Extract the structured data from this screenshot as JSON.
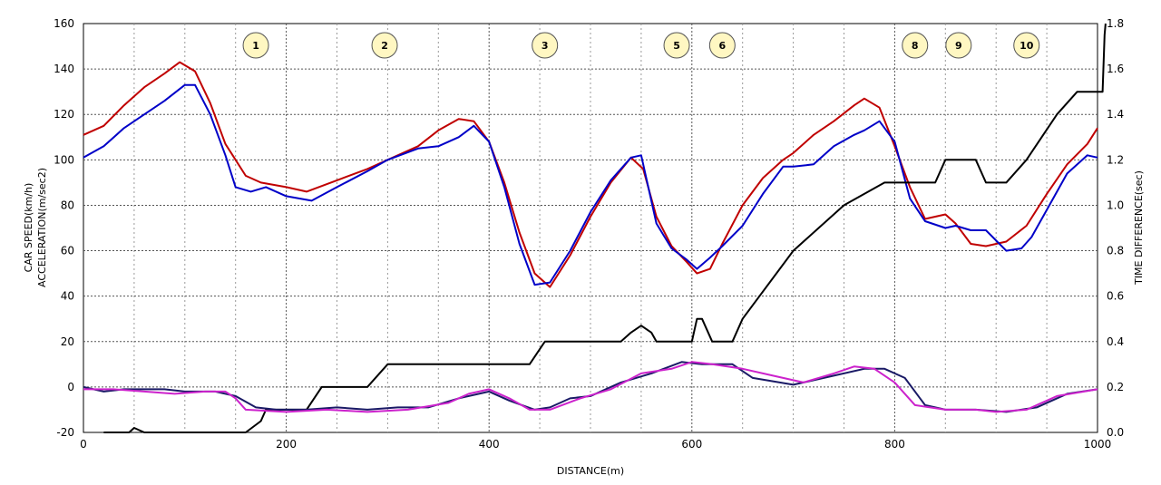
{
  "chart_data": {
    "type": "line",
    "x_range": [
      0,
      1000
    ],
    "x_ticks": [
      0,
      200,
      400,
      600,
      800,
      1000
    ],
    "x_minor_step": 50,
    "xlabel": "DISTANCE(m)",
    "y_left": {
      "labels": [
        "CAR SPEED(km/h)",
        "ACCELERATION(m/sec2)"
      ],
      "range": [
        -20,
        160
      ],
      "ticks": [
        -20,
        0,
        20,
        40,
        60,
        80,
        100,
        120,
        140,
        160
      ]
    },
    "y_right": {
      "label": "TIME DIFFERENCE(sec)",
      "range": [
        0.0,
        1.8
      ],
      "ticks": [
        "0.0",
        "0.2",
        "0.4",
        "0.6",
        "0.8",
        "1.0",
        "1.2",
        "1.4",
        "1.6",
        "1.8"
      ]
    },
    "grid": true,
    "corner_markers": [
      {
        "label": "1",
        "x": 170
      },
      {
        "label": "2",
        "x": 297
      },
      {
        "label": "3",
        "x": 455
      },
      {
        "label": "5",
        "x": 585
      },
      {
        "label": "6",
        "x": 630
      },
      {
        "label": "8",
        "x": 820
      },
      {
        "label": "9",
        "x": 863
      },
      {
        "label": "10",
        "x": 930
      }
    ],
    "series": [
      {
        "color": "#c00000",
        "axis": "left",
        "x": [
          0,
          20,
          40,
          60,
          80,
          95,
          110,
          125,
          140,
          150,
          160,
          175,
          200,
          220,
          250,
          280,
          300,
          330,
          350,
          370,
          385,
          400,
          415,
          430,
          445,
          460,
          480,
          500,
          520,
          540,
          552,
          565,
          580,
          595,
          605,
          618,
          630,
          650,
          670,
          690,
          700,
          720,
          740,
          760,
          770,
          785,
          800,
          815,
          830,
          850,
          860,
          875,
          890,
          910,
          930,
          950,
          970,
          990,
          1000
        ],
        "y": [
          111,
          115,
          124,
          132,
          138,
          143,
          139,
          125,
          107,
          100,
          93,
          90,
          88,
          86,
          91,
          96,
          100,
          106,
          113,
          118,
          117,
          108,
          90,
          68,
          50,
          44,
          58,
          75,
          90,
          101,
          96,
          75,
          62,
          55,
          50,
          52,
          63,
          80,
          92,
          100,
          103,
          111,
          117,
          124,
          127,
          123,
          106,
          88,
          74,
          76,
          72,
          63,
          62,
          64,
          71,
          85,
          98,
          107,
          114
        ]
      },
      {
        "color": "#0000c8",
        "axis": "left",
        "x": [
          0,
          20,
          40,
          60,
          80,
          100,
          110,
          125,
          140,
          150,
          165,
          180,
          200,
          225,
          250,
          280,
          300,
          330,
          350,
          370,
          385,
          400,
          415,
          430,
          445,
          460,
          480,
          500,
          520,
          540,
          550,
          565,
          580,
          595,
          605,
          618,
          630,
          650,
          670,
          690,
          700,
          720,
          740,
          760,
          770,
          785,
          800,
          815,
          830,
          850,
          860,
          875,
          890,
          910,
          925,
          935,
          950,
          970,
          990,
          1000
        ],
        "y": [
          101,
          106,
          114,
          120,
          126,
          133,
          133,
          120,
          102,
          88,
          86,
          88,
          84,
          82,
          88,
          95,
          100,
          105,
          106,
          110,
          115,
          108,
          88,
          63,
          45,
          46,
          60,
          77,
          91,
          101,
          102,
          72,
          61,
          56,
          52,
          57,
          62,
          71,
          85,
          97,
          97,
          98,
          106,
          111,
          113,
          117,
          108,
          83,
          73,
          70,
          71,
          69,
          69,
          60,
          61,
          66,
          78,
          94,
          102,
          101
        ]
      },
      {
        "color": "#000000",
        "axis": "right",
        "x": [
          20,
          45,
          50,
          60,
          110,
          160,
          175,
          180,
          210,
          220,
          235,
          240,
          280,
          300,
          440,
          455,
          530,
          540,
          550,
          560,
          565,
          590,
          600,
          605,
          610,
          620,
          640,
          650,
          700,
          750,
          790,
          800,
          840,
          850,
          870,
          880,
          890,
          900,
          910,
          930,
          960,
          980,
          1000,
          1005,
          1007,
          1008
        ],
        "y": [
          0,
          0,
          0.02,
          0,
          0,
          0,
          0.05,
          0.1,
          0.1,
          0.1,
          0.2,
          0.2,
          0.2,
          0.3,
          0.3,
          0.4,
          0.4,
          0.44,
          0.47,
          0.44,
          0.4,
          0.4,
          0.4,
          0.5,
          0.5,
          0.4,
          0.4,
          0.5,
          0.8,
          1.0,
          1.1,
          1.1,
          1.1,
          1.2,
          1.2,
          1.2,
          1.1,
          1.1,
          1.1,
          1.2,
          1.4,
          1.5,
          1.5,
          1.5,
          1.75,
          1.8
        ]
      },
      {
        "color": "#1a1a66",
        "axis": "left",
        "x": [
          0,
          20,
          40,
          60,
          80,
          100,
          130,
          150,
          170,
          190,
          220,
          250,
          280,
          310,
          340,
          370,
          400,
          420,
          445,
          460,
          480,
          500,
          530,
          560,
          590,
          610,
          640,
          660,
          700,
          740,
          770,
          790,
          810,
          830,
          850,
          880,
          910,
          940,
          970,
          1000
        ],
        "y": [
          0,
          -2,
          -1,
          -1,
          -1,
          -2,
          -2,
          -4,
          -9,
          -10,
          -10,
          -9,
          -10,
          -9,
          -9,
          -5,
          -2,
          -6,
          -10,
          -9,
          -5,
          -4,
          2,
          6,
          11,
          10,
          10,
          4,
          1,
          5,
          8,
          8,
          4,
          -8,
          -10,
          -10,
          -11,
          -9,
          -3,
          -1
        ]
      },
      {
        "color": "#cc22cc",
        "axis": "left",
        "x": [
          0,
          30,
          60,
          90,
          120,
          140,
          150,
          160,
          200,
          240,
          280,
          320,
          360,
          380,
          400,
          420,
          440,
          460,
          490,
          520,
          550,
          580,
          600,
          620,
          650,
          680,
          710,
          740,
          760,
          780,
          800,
          820,
          850,
          880,
          900,
          930,
          960,
          1000
        ],
        "y": [
          -1,
          -1,
          -2,
          -3,
          -2,
          -2,
          -5,
          -10,
          -11,
          -10,
          -11,
          -10,
          -7,
          -3,
          -1,
          -5,
          -10,
          -10,
          -5,
          -1,
          6,
          8,
          11,
          10,
          8,
          5,
          2,
          6,
          9,
          8,
          2,
          -8,
          -10,
          -10,
          -11,
          -10,
          -4,
          -1
        ]
      }
    ]
  }
}
